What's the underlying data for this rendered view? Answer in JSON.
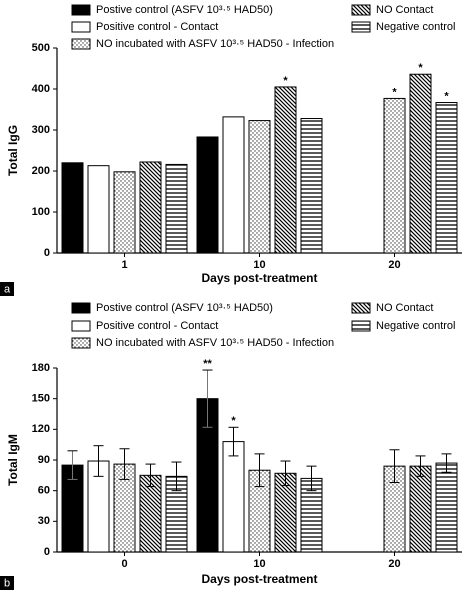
{
  "chart_data": [
    {
      "type": "bar",
      "panel": "a",
      "ylabel": "Total IgG",
      "xlabel": "Days post-treatment",
      "categories": [
        "1",
        "10",
        "20"
      ],
      "ylim": [
        0,
        500
      ],
      "yticks": [
        0,
        100,
        200,
        300,
        400,
        500
      ],
      "series": [
        {
          "name": "Postive control (ASFV 10³·⁵ HAD50)",
          "color": "#000000",
          "pattern": "solid",
          "values": [
            220,
            283,
            null
          ],
          "significance": [
            null,
            null,
            null
          ]
        },
        {
          "name": "Positive control - Contact",
          "color": "#ffffff",
          "pattern": "none",
          "values": [
            213,
            332,
            null
          ],
          "significance": [
            null,
            null,
            null
          ]
        },
        {
          "name": "NO  incubated with ASFV 10³·⁵ HAD50 - Infection",
          "color": "#ffffff",
          "pattern": "dots",
          "values": [
            198,
            323,
            377
          ],
          "significance": [
            null,
            null,
            "*"
          ]
        },
        {
          "name": "NO  Contact",
          "color": "#ffffff",
          "pattern": "diagonal",
          "values": [
            222,
            405,
            436
          ],
          "significance": [
            null,
            "*",
            "*"
          ]
        },
        {
          "name": "Negative control",
          "color": "#ffffff",
          "pattern": "horizontal",
          "values": [
            216,
            328,
            367
          ],
          "significance": [
            null,
            null,
            "*"
          ]
        }
      ]
    },
    {
      "type": "bar",
      "panel": "b",
      "ylabel": "Total IgM",
      "xlabel": "Days post-treatment",
      "categories": [
        "0",
        "10",
        "20"
      ],
      "ylim": [
        0,
        180
      ],
      "yticks": [
        0,
        30,
        60,
        90,
        120,
        150,
        180
      ],
      "series": [
        {
          "name": "Postive control (ASFV 10³·⁵ HAD50)",
          "color": "#000000",
          "pattern": "solid",
          "values": [
            85,
            150,
            null
          ],
          "errors": [
            14,
            28,
            null
          ],
          "significance": [
            null,
            "**",
            null
          ]
        },
        {
          "name": "Positive control - Contact",
          "color": "#ffffff",
          "pattern": "none",
          "values": [
            89,
            108,
            null
          ],
          "errors": [
            15,
            14,
            null
          ],
          "significance": [
            null,
            "*",
            null
          ]
        },
        {
          "name": "NO  incubated with ASFV 10³·⁵ HAD50 - Infection",
          "color": "#ffffff",
          "pattern": "dots",
          "values": [
            86,
            80,
            84
          ],
          "errors": [
            15,
            16,
            16
          ],
          "significance": [
            null,
            null,
            null
          ]
        },
        {
          "name": "NO  Contact",
          "color": "#ffffff",
          "pattern": "diagonal",
          "values": [
            75,
            77,
            84
          ],
          "errors": [
            11,
            12,
            10
          ],
          "significance": [
            null,
            null,
            null
          ]
        },
        {
          "name": "Negative control",
          "color": "#ffffff",
          "pattern": "horizontal",
          "values": [
            74,
            72,
            87
          ],
          "errors": [
            14,
            12,
            9
          ],
          "significance": [
            null,
            null,
            null
          ]
        }
      ]
    }
  ]
}
